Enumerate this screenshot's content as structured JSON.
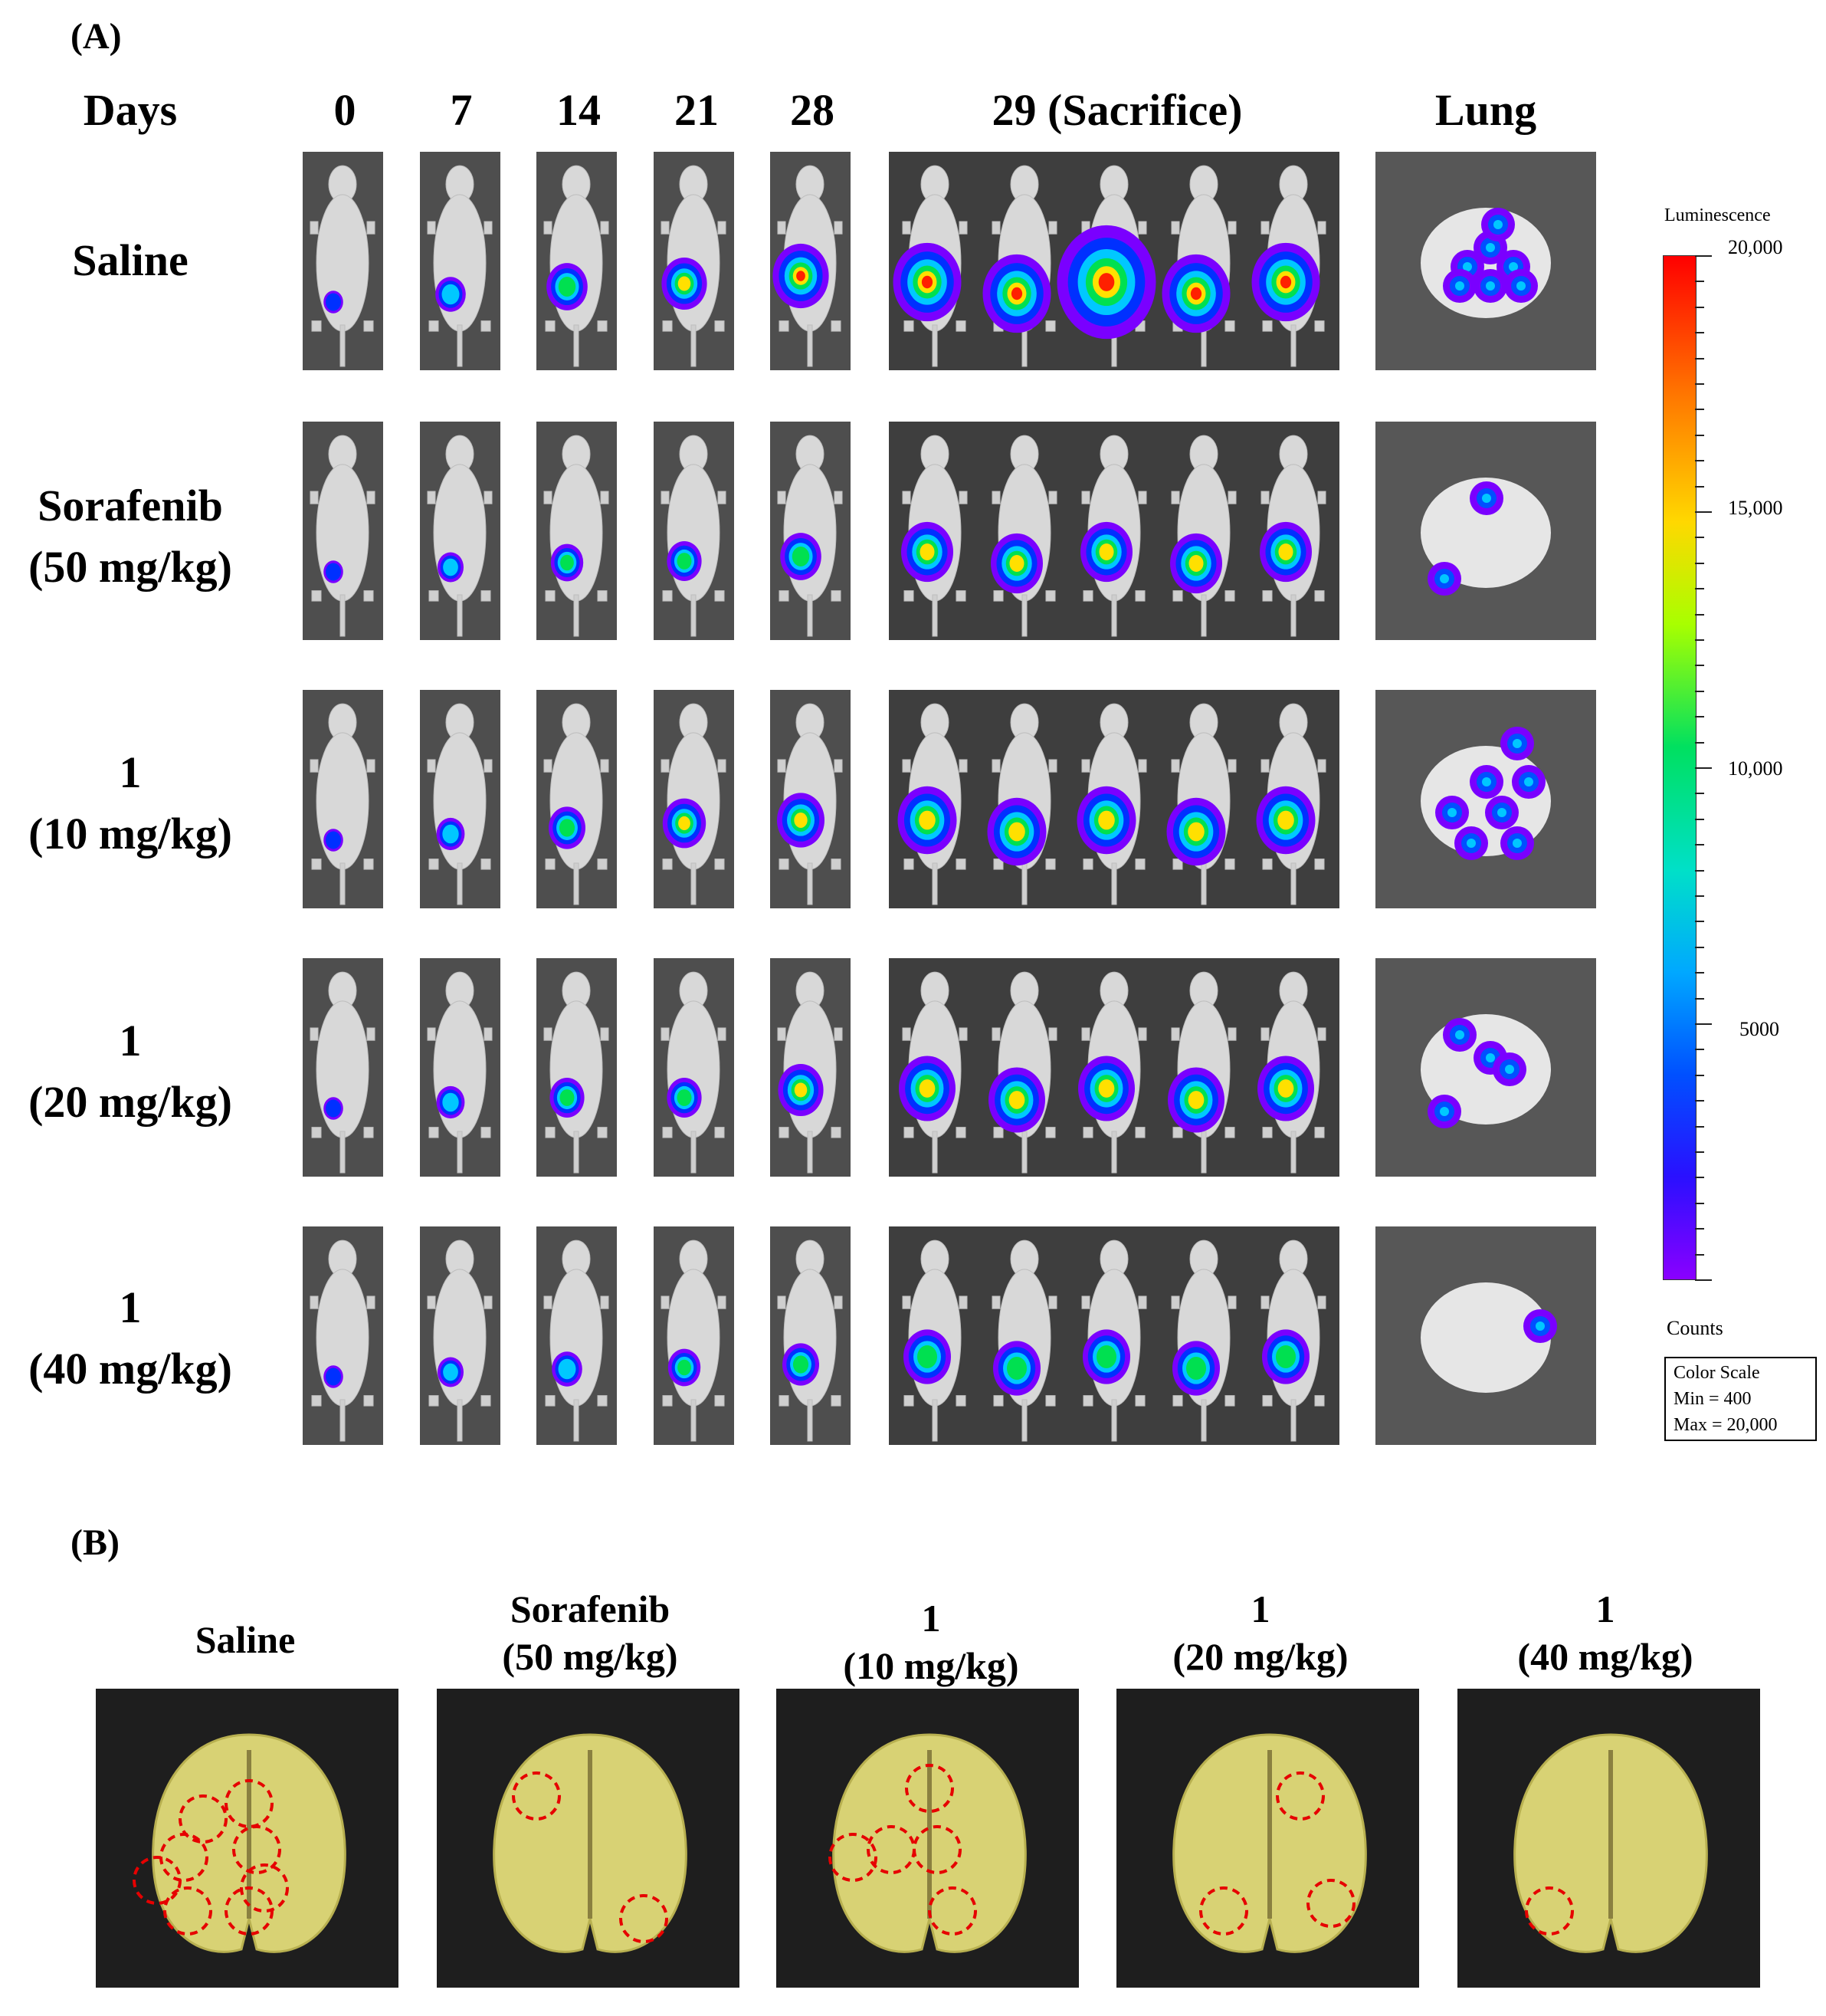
{
  "panel_a": {
    "label": "(A)",
    "header_days": "Days",
    "day_headers": [
      "0",
      "7",
      "14",
      "21",
      "28",
      "29 (Sacrifice)",
      "Lung"
    ],
    "rows": [
      {
        "line1": "Saline",
        "line2": ""
      },
      {
        "line1": "Sorafenib",
        "line2": "(50 mg/kg)"
      },
      {
        "line1": "1",
        "line2": "(10 mg/kg)"
      },
      {
        "line1": "1",
        "line2": "(20 mg/kg)"
      },
      {
        "line1": "1",
        "line2": "(40 mg/kg)"
      }
    ]
  },
  "color_scale": {
    "title": "Luminescence",
    "ticks": [
      "20,000",
      "15,000",
      "10,000",
      "5000"
    ],
    "units": "Counts",
    "box_title": "Color Scale",
    "box_min": "Min = 400",
    "box_max": "Max = 20,000"
  },
  "panel_b": {
    "label": "(B)",
    "groups": [
      {
        "line1": "Saline",
        "line2": ""
      },
      {
        "line1": "Sorafenib",
        "line2": "(50 mg/kg)"
      },
      {
        "line1": "1",
        "line2": "(10 mg/kg)"
      },
      {
        "line1": "1",
        "line2": "(20 mg/kg)"
      },
      {
        "line1": "1",
        "line2": "(40 mg/kg)"
      }
    ]
  }
}
